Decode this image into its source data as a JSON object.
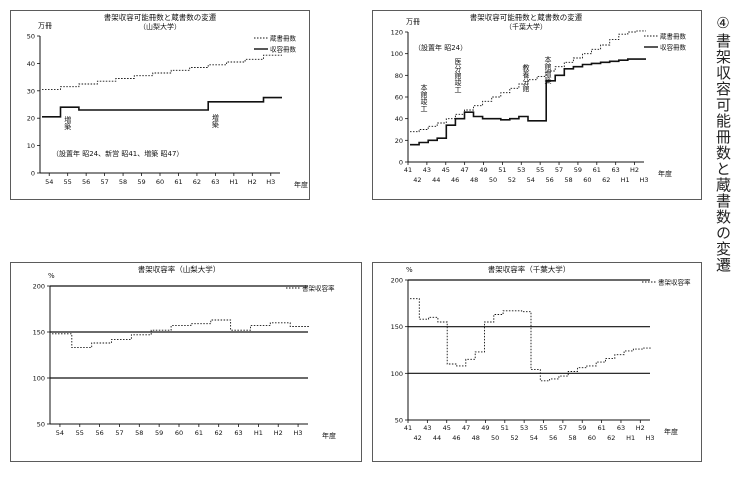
{
  "page_title": "④書架収容可能冊数と蔵書数の変遷",
  "chart_data": [
    {
      "id": "p1",
      "type": "line",
      "title": "書架収容可能冊数と蔵書数の変遷",
      "subtitle": "（山梨大学）",
      "ylabel": "万冊",
      "xlabel": "年度",
      "ylim": [
        0,
        50
      ],
      "yticks": [
        0,
        10,
        20,
        30,
        40,
        50
      ],
      "x_ticks": [
        "54",
        "55",
        "56",
        "57",
        "58",
        "59",
        "60",
        "61",
        "62",
        "63",
        "H1",
        "H2",
        "H3"
      ],
      "series": [
        {
          "name": "蔵書冊数",
          "style": "dotted",
          "values": [
            30.5,
            31.5,
            32.5,
            33.5,
            34.5,
            35.5,
            36.5,
            37.5,
            38.5,
            39.5,
            40.5,
            41.5,
            43
          ]
        },
        {
          "name": "収容冊数",
          "style": "solid",
          "values": [
            20.5,
            24,
            23,
            23,
            23,
            23,
            23,
            23,
            23,
            26,
            26,
            26,
            27.5
          ]
        }
      ],
      "annotations": [
        {
          "text": "増築",
          "x": "55"
        },
        {
          "text": "増築",
          "x": "63"
        },
        {
          "text": "（設置年 昭24、新営 昭41、増築 昭47）"
        }
      ]
    },
    {
      "id": "p2",
      "type": "line",
      "title": "書架収容可能冊数と蔵書数の変遷",
      "subtitle": "（千葉大学）",
      "ylabel": "万冊",
      "xlabel": "年度",
      "ylim": [
        0,
        120
      ],
      "yticks": [
        0,
        20,
        40,
        60,
        80,
        100,
        120
      ],
      "x_ticks_top": [
        "41",
        "43",
        "45",
        "47",
        "49",
        "51",
        "53",
        "55",
        "57",
        "59",
        "61",
        "63",
        "H2"
      ],
      "x_ticks_bottom": [
        "42",
        "44",
        "46",
        "48",
        "50",
        "52",
        "54",
        "56",
        "58",
        "60",
        "62",
        "H1",
        "H3"
      ],
      "series": [
        {
          "name": "蔵書冊数",
          "style": "dotted",
          "values": [
            28,
            30,
            33,
            36,
            40,
            44,
            48,
            52,
            56,
            60,
            64,
            68,
            72,
            76,
            79,
            84,
            88,
            92,
            96,
            100,
            104,
            108,
            113,
            118,
            120,
            121
          ]
        },
        {
          "name": "収容冊数",
          "style": "solid",
          "values": [
            16,
            18,
            20,
            22,
            34,
            40,
            46,
            42,
            40,
            40,
            39,
            40,
            42,
            38,
            38,
            75,
            80,
            86,
            88,
            90,
            91,
            92,
            93,
            94,
            95,
            95
          ]
        }
      ],
      "annotations": [
        {
          "text": "（設置年 昭24）"
        },
        {
          "text": "本館竣工",
          "x": "42"
        },
        {
          "text": "医分館竣工",
          "x": "46"
        },
        {
          "text": "教養分館",
          "x": "52"
        },
        {
          "text": "本館増築",
          "x": "55"
        }
      ]
    },
    {
      "id": "p3",
      "type": "line",
      "title": "書架収容率（山梨大学）",
      "ylabel": "%",
      "xlabel": "年度",
      "ylim": [
        50,
        200
      ],
      "yticks": [
        50,
        100,
        150,
        200
      ],
      "x_ticks": [
        "54",
        "55",
        "56",
        "57",
        "58",
        "59",
        "60",
        "61",
        "62",
        "63",
        "H1",
        "H2",
        "H3"
      ],
      "reference_lines": [
        100,
        150,
        200
      ],
      "series": [
        {
          "name": "書架収容率",
          "style": "dotted",
          "values": [
            148,
            133,
            138,
            142,
            147,
            152,
            157,
            159,
            163,
            152,
            157,
            160,
            156
          ]
        }
      ]
    },
    {
      "id": "p4",
      "type": "line",
      "title": "書架収容率（千葉大学）",
      "ylabel": "%",
      "xlabel": "年度",
      "ylim": [
        50,
        200
      ],
      "yticks": [
        50,
        100,
        150,
        200
      ],
      "x_ticks_top": [
        "41",
        "43",
        "45",
        "47",
        "49",
        "51",
        "53",
        "55",
        "57",
        "59",
        "61",
        "63",
        "H2"
      ],
      "x_ticks_bottom": [
        "42",
        "44",
        "46",
        "48",
        "50",
        "52",
        "54",
        "56",
        "58",
        "60",
        "62",
        "H1",
        "H3"
      ],
      "reference_lines": [
        100,
        150,
        200
      ],
      "series": [
        {
          "name": "書架収容率",
          "style": "dotted",
          "values": [
            180,
            158,
            160,
            155,
            110,
            108,
            115,
            123,
            155,
            163,
            167,
            167,
            166,
            104,
            92,
            94,
            97,
            102,
            106,
            108,
            112,
            116,
            120,
            124,
            126,
            127
          ]
        }
      ]
    }
  ]
}
